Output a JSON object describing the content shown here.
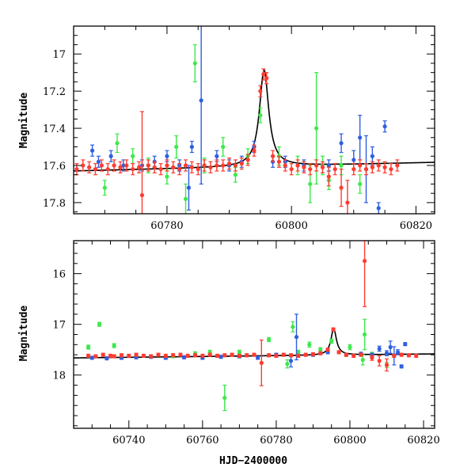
{
  "chart_data": [
    {
      "type": "scatter",
      "title": "",
      "xlabel": "",
      "ylabel": "Magnitude",
      "xlim": [
        60765,
        60823
      ],
      "ylim": [
        17.86,
        16.85
      ],
      "y_inverted": true,
      "grid": false,
      "x_ticks": [
        60780,
        60800,
        60820
      ],
      "y_ticks": [
        17,
        17.2,
        17.4,
        17.6,
        17.8
      ],
      "x_tick_labels": [
        "60780",
        "60800",
        "60820"
      ],
      "y_tick_labels": [
        "17",
        "17.2",
        "17.4",
        "17.6",
        "17.8"
      ],
      "series": [
        {
          "color": "#ff3b2f",
          "x": [
            60765.5,
            60766.5,
            60767.5,
            60768.5,
            60769.5,
            60770.5,
            60771.5,
            60772.5,
            60773.5,
            60774.5,
            60775.5,
            60776,
            60777,
            60778,
            60779,
            60780,
            60781,
            60782,
            60783,
            60784,
            60785,
            60786,
            60787,
            60788,
            60789,
            60790,
            60791,
            60792,
            60793,
            60794,
            60795,
            60795.5,
            60796,
            60797,
            60798,
            60799,
            60800,
            60801,
            60802,
            60803,
            60804,
            60805,
            60806,
            60807,
            60808,
            60809,
            60810,
            60811,
            60812,
            60813,
            60814,
            60815,
            60816,
            60817
          ],
          "y": [
            17.62,
            17.6,
            17.61,
            17.62,
            17.6,
            17.62,
            17.6,
            17.61,
            17.6,
            17.62,
            17.61,
            17.76,
            17.6,
            17.61,
            17.62,
            17.6,
            17.61,
            17.62,
            17.6,
            17.61,
            17.62,
            17.6,
            17.61,
            17.6,
            17.6,
            17.59,
            17.6,
            17.59,
            17.57,
            17.52,
            17.2,
            17.11,
            17.13,
            17.55,
            17.58,
            17.6,
            17.62,
            17.6,
            17.61,
            17.62,
            17.6,
            17.61,
            17.66,
            17.62,
            17.72,
            17.8,
            17.62,
            17.6,
            17.62,
            17.61,
            17.6,
            17.61,
            17.62,
            17.6
          ],
          "err": [
            0.03,
            0.03,
            0.03,
            0.03,
            0.03,
            0.03,
            0.03,
            0.03,
            0.03,
            0.03,
            0.03,
            0.45,
            0.03,
            0.03,
            0.03,
            0.03,
            0.03,
            0.03,
            0.03,
            0.03,
            0.03,
            0.03,
            0.03,
            0.03,
            0.03,
            0.03,
            0.03,
            0.03,
            0.03,
            0.03,
            0.03,
            0.03,
            0.03,
            0.03,
            0.03,
            0.03,
            0.03,
            0.03,
            0.03,
            0.03,
            0.03,
            0.03,
            0.05,
            0.03,
            0.1,
            0.12,
            0.03,
            0.03,
            0.03,
            0.03,
            0.03,
            0.03,
            0.03,
            0.03
          ]
        },
        {
          "color": "#2f5fe0",
          "x": [
            60768,
            60769,
            60771,
            60773,
            60776,
            60778,
            60780,
            60782,
            60783.5,
            60784,
            60785.5,
            60788,
            60790,
            60792,
            60794,
            60797,
            60799,
            60802,
            60806,
            60808,
            60810,
            60811,
            60812,
            60813,
            60814,
            60815
          ],
          "y": [
            17.52,
            17.58,
            17.55,
            17.6,
            17.6,
            17.58,
            17.55,
            17.6,
            17.72,
            17.5,
            17.25,
            17.55,
            17.6,
            17.58,
            17.5,
            17.58,
            17.58,
            17.6,
            17.6,
            17.48,
            17.57,
            17.45,
            17.62,
            17.55,
            17.83,
            17.39
          ],
          "err": [
            0.03,
            0.03,
            0.03,
            0.03,
            0.03,
            0.03,
            0.03,
            0.03,
            0.12,
            0.03,
            0.45,
            0.03,
            0.03,
            0.03,
            0.03,
            0.03,
            0.03,
            0.03,
            0.03,
            0.05,
            0.05,
            0.12,
            0.18,
            0.05,
            0.03,
            0.03
          ]
        },
        {
          "color": "#3de84a",
          "x": [
            60770,
            60772,
            60774.5,
            60777,
            60780,
            60781.5,
            60783,
            60784.5,
            60786,
            60789,
            60791,
            60793,
            60795,
            60798,
            60801,
            60803,
            60804,
            60805,
            60806,
            60808,
            60811
          ],
          "y": [
            17.72,
            17.48,
            17.55,
            17.6,
            17.66,
            17.5,
            17.78,
            17.05,
            17.6,
            17.5,
            17.65,
            17.55,
            17.33,
            17.55,
            17.6,
            17.7,
            17.4,
            17.6,
            17.68,
            17.6,
            17.7
          ],
          "err": [
            0.04,
            0.05,
            0.04,
            0.04,
            0.04,
            0.06,
            0.08,
            0.1,
            0.04,
            0.05,
            0.04,
            0.04,
            0.04,
            0.05,
            0.05,
            0.1,
            0.3,
            0.05,
            0.05,
            0.05,
            0.05
          ]
        }
      ]
    },
    {
      "type": "scatter",
      "title": "",
      "xlabel": "HJD−2400000",
      "ylabel": "Magnitude",
      "xlim": [
        60725,
        60823
      ],
      "ylim": [
        19.05,
        15.35
      ],
      "y_inverted": true,
      "grid": false,
      "x_ticks": [
        60740,
        60760,
        60780,
        60800,
        60820
      ],
      "y_ticks": [
        16,
        17,
        18
      ],
      "x_tick_labels": [
        "60740",
        "60760",
        "60780",
        "60800",
        "60820"
      ],
      "y_tick_labels": [
        "16",
        "17",
        "18"
      ],
      "series": [
        {
          "color": "#ff3b2f",
          "x": [
            60729,
            60731,
            60733,
            60735,
            60736,
            60738,
            60740,
            60742,
            60744,
            60746,
            60748,
            60750,
            60752,
            60754,
            60756,
            60758,
            60760,
            60762,
            60764,
            60766,
            60768,
            60770,
            60772,
            60774,
            60776,
            60778,
            60780,
            60782,
            60784,
            60786,
            60788,
            60790,
            60792,
            60794,
            60795.5,
            60797,
            60799,
            60801,
            60803,
            60804,
            60806,
            60808,
            60810,
            60812,
            60814,
            60816,
            60818
          ],
          "y": [
            17.62,
            17.63,
            17.6,
            17.62,
            17.63,
            17.61,
            17.62,
            17.6,
            17.62,
            17.63,
            17.6,
            17.62,
            17.61,
            17.6,
            17.62,
            17.61,
            17.62,
            17.6,
            17.62,
            17.61,
            17.6,
            17.62,
            17.61,
            17.6,
            17.76,
            17.61,
            17.62,
            17.6,
            17.61,
            17.62,
            17.6,
            17.59,
            17.57,
            17.5,
            17.1,
            17.55,
            17.6,
            17.62,
            17.6,
            15.75,
            17.66,
            17.72,
            17.8,
            17.62,
            17.6,
            17.61,
            17.62
          ],
          "err": [
            0.03,
            0.03,
            0.03,
            0.03,
            0.03,
            0.03,
            0.03,
            0.03,
            0.03,
            0.03,
            0.03,
            0.03,
            0.03,
            0.03,
            0.03,
            0.03,
            0.03,
            0.03,
            0.03,
            0.03,
            0.03,
            0.03,
            0.03,
            0.03,
            0.45,
            0.03,
            0.03,
            0.03,
            0.03,
            0.03,
            0.03,
            0.03,
            0.03,
            0.03,
            0.03,
            0.03,
            0.03,
            0.03,
            0.03,
            0.9,
            0.05,
            0.1,
            0.12,
            0.03,
            0.03,
            0.03,
            0.03
          ]
        },
        {
          "color": "#2f5fe0",
          "x": [
            60730,
            60734,
            60738,
            60742,
            60746,
            60750,
            60755,
            60760,
            60765,
            60770,
            60775,
            60780,
            60784,
            60785.5,
            60790,
            60794,
            60799,
            60803,
            60806,
            60808,
            60810,
            60811,
            60812,
            60813,
            60814,
            60815
          ],
          "y": [
            17.66,
            17.67,
            17.66,
            17.65,
            17.64,
            17.66,
            17.65,
            17.66,
            17.64,
            17.63,
            17.66,
            17.6,
            17.72,
            17.25,
            17.6,
            17.55,
            17.6,
            17.58,
            17.6,
            17.48,
            17.57,
            17.45,
            17.62,
            17.55,
            17.83,
            17.39
          ],
          "err": [
            0.03,
            0.03,
            0.03,
            0.03,
            0.03,
            0.03,
            0.03,
            0.03,
            0.03,
            0.03,
            0.03,
            0.03,
            0.12,
            0.45,
            0.03,
            0.03,
            0.03,
            0.03,
            0.03,
            0.05,
            0.05,
            0.12,
            0.18,
            0.05,
            0.03,
            0.03
          ]
        },
        {
          "color": "#3de84a",
          "x": [
            60729,
            60732,
            60736,
            60752,
            60758,
            60762,
            60766,
            60770,
            60778,
            60783,
            60784.5,
            60786,
            60789,
            60792,
            60795,
            60800,
            60803.5,
            60804,
            60806,
            60810
          ],
          "y": [
            17.45,
            17.0,
            17.42,
            17.62,
            17.58,
            17.55,
            18.45,
            17.55,
            17.3,
            17.78,
            17.05,
            17.55,
            17.4,
            17.5,
            17.33,
            17.45,
            17.7,
            17.2,
            17.6,
            17.8
          ],
          "err": [
            0.04,
            0.04,
            0.04,
            0.04,
            0.04,
            0.04,
            0.25,
            0.04,
            0.04,
            0.08,
            0.1,
            0.04,
            0.05,
            0.04,
            0.04,
            0.05,
            0.1,
            0.3,
            0.05,
            0.05
          ]
        }
      ]
    }
  ]
}
